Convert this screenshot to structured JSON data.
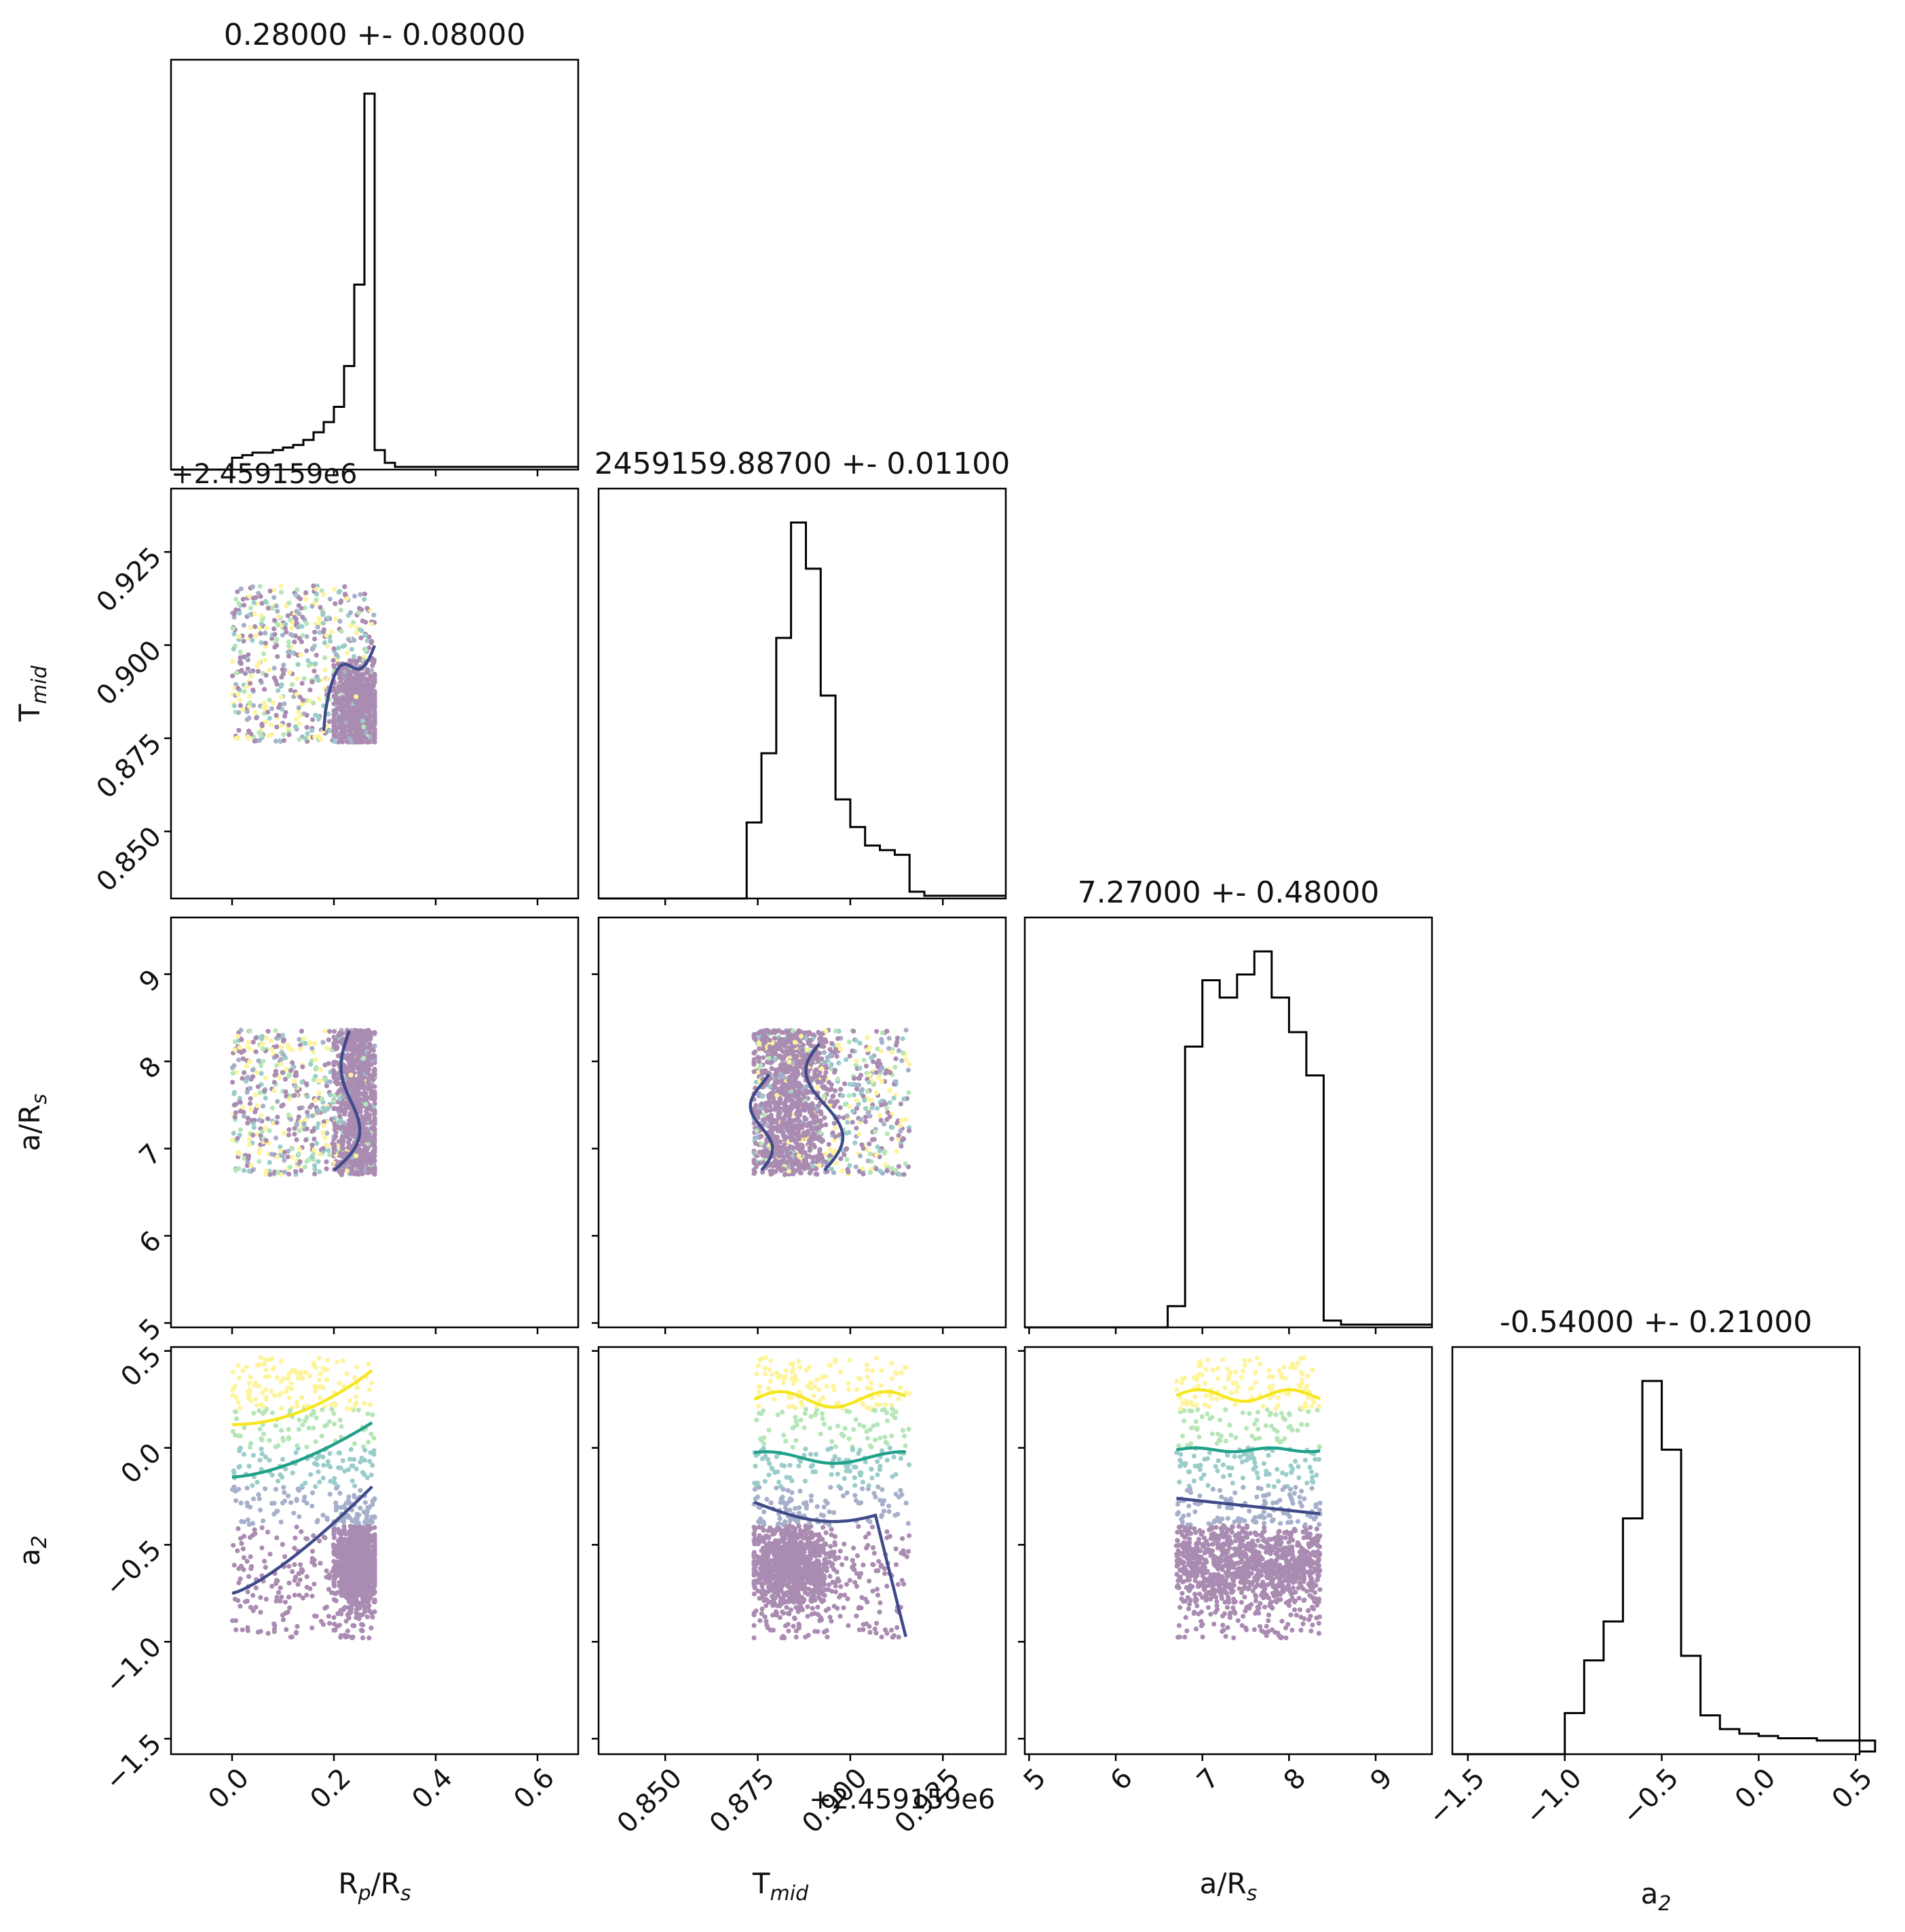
{
  "chart_data": {
    "type": "corner",
    "params": [
      {
        "label": "Rₚ/Rₛ",
        "axis_label_main": "R",
        "axis_label_sub1": "p",
        "axis_label_mid": "/R",
        "axis_label_sub2": "s",
        "title": "0.28000 +- 0.08000",
        "range": [
          -0.12,
          0.68
        ],
        "ticks": [
          0.0,
          0.2,
          0.4,
          0.6
        ],
        "tick_labels": [
          "0.0",
          "0.2",
          "0.4",
          "0.6"
        ]
      },
      {
        "label": "T mid",
        "axis_label_main": "T",
        "axis_label_sub1": "mid",
        "title": "2459159.88700 +- 0.01100",
        "offset_label": "+2.459159e6",
        "range": [
          0.832,
          0.942
        ],
        "ticks": [
          0.85,
          0.875,
          0.9,
          0.925
        ],
        "tick_labels": [
          "0.850",
          "0.875",
          "0.900",
          "0.925"
        ]
      },
      {
        "label": "a/R s",
        "axis_label_main": "a/R",
        "axis_label_sub1": "s",
        "title": "7.27000 +- 0.48000",
        "range": [
          4.95,
          9.65
        ],
        "ticks": [
          5,
          6,
          7,
          8,
          9
        ],
        "tick_labels": [
          "5",
          "6",
          "7",
          "8",
          "9"
        ]
      },
      {
        "label": "a 2",
        "axis_label_main": "a",
        "axis_label_sub1": "2",
        "title": "-0.54000 +- 0.21000",
        "range": [
          -1.58,
          0.52
        ],
        "ticks": [
          -1.5,
          -1.0,
          -0.5,
          0.0,
          0.5
        ],
        "tick_labels": [
          "−1.5",
          "−1.0",
          "−0.5",
          "0.0",
          "0.5"
        ]
      }
    ],
    "histograms": [
      {
        "param": 0,
        "x": [
          0.0,
          0.02,
          0.04,
          0.06,
          0.08,
          0.1,
          0.12,
          0.14,
          0.16,
          0.18,
          0.2,
          0.22,
          0.24,
          0.26,
          0.28,
          0.3
        ],
        "values": [
          2,
          3,
          4,
          4,
          5,
          6,
          7,
          9,
          12,
          16,
          22,
          38,
          70,
          145,
          5,
          0
        ]
      },
      {
        "param": 1,
        "x": [
          0.872,
          0.876,
          0.88,
          0.884,
          0.888,
          0.892,
          0.896,
          0.9,
          0.904,
          0.908,
          0.912,
          0.916
        ],
        "values": [
          30,
          60,
          110,
          160,
          140,
          85,
          40,
          28,
          20,
          18,
          16,
          0
        ]
      },
      {
        "param": 2,
        "x": [
          6.6,
          6.8,
          7.0,
          7.2,
          7.4,
          7.6,
          7.8,
          8.0,
          8.2,
          8.4
        ],
        "values": [
          5,
          95,
          118,
          112,
          120,
          128,
          112,
          100,
          85,
          0
        ]
      },
      {
        "param": 3,
        "x": [
          -1.0,
          -0.9,
          -0.8,
          -0.7,
          -0.6,
          -0.5,
          -0.4,
          -0.3,
          -0.2,
          -0.1,
          0.0,
          0.1,
          0.2,
          0.3,
          0.4,
          0.5
        ],
        "values": [
          15,
          38,
          55,
          100,
          160,
          130,
          40,
          14,
          8,
          6,
          5,
          4,
          4,
          3,
          3,
          3
        ]
      }
    ],
    "scatter_note": "pairwise posterior samples colored by a2 (viridis), with contour lines",
    "colormap": [
      "#440154",
      "#3b528b",
      "#21918c",
      "#5ec962",
      "#fde725"
    ],
    "contour_colors": [
      "#3f4a8a",
      "#21a08a",
      "#f6e620"
    ]
  }
}
